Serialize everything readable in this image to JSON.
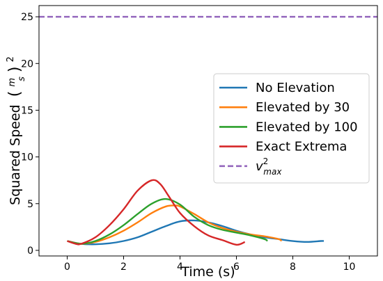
{
  "chart_data": {
    "type": "line",
    "title": "",
    "xlabel": "Time (s)",
    "ylabel": "Squared Speed",
    "ylabel_unit_top": "m",
    "ylabel_unit_bottom": "s",
    "ylabel_unit_power": "2",
    "xlim": [
      -1,
      11
    ],
    "ylim": [
      -0.6,
      26.2
    ],
    "xticks": [
      0,
      2,
      4,
      6,
      8,
      10
    ],
    "yticks": [
      0,
      5,
      10,
      15,
      20,
      25
    ],
    "grid": false,
    "legend_position": "right",
    "vmax_label_base": "v",
    "vmax_label_sup": "2",
    "vmax_label_sub": "max",
    "series": [
      {
        "name": "No Elevation",
        "color": "#1f77b4",
        "style": "solid",
        "x": [
          0,
          0.5,
          1,
          1.5,
          2,
          2.5,
          3,
          3.5,
          4,
          4.5,
          5,
          5.5,
          6,
          6.5,
          7,
          7.5,
          8,
          8.5,
          9,
          9.1
        ],
        "y": [
          1.0,
          0.7,
          0.65,
          0.75,
          1.0,
          1.4,
          2.0,
          2.6,
          3.1,
          3.2,
          3.0,
          2.6,
          2.1,
          1.7,
          1.4,
          1.2,
          1.0,
          0.9,
          1.0,
          1.0
        ]
      },
      {
        "name": "Elevated by 30",
        "color": "#ff7f0e",
        "style": "solid",
        "x": [
          0,
          0.5,
          1,
          1.5,
          2,
          2.5,
          3,
          3.5,
          3.8,
          4,
          4.5,
          5,
          5.5,
          6,
          6.5,
          7,
          7.5,
          7.6
        ],
        "y": [
          1.0,
          0.7,
          0.9,
          1.4,
          2.1,
          3.0,
          4.0,
          4.7,
          4.8,
          4.7,
          3.9,
          3.0,
          2.4,
          2.0,
          1.7,
          1.5,
          1.2,
          1.0
        ]
      },
      {
        "name": "Elevated by 100",
        "color": "#2ca02c",
        "style": "solid",
        "x": [
          0,
          0.5,
          1,
          1.5,
          2,
          2.5,
          3,
          3.5,
          4,
          4.5,
          5,
          5.5,
          6,
          6.5,
          7,
          7.1
        ],
        "y": [
          1.0,
          0.7,
          1.0,
          1.7,
          2.7,
          3.9,
          5.0,
          5.5,
          4.9,
          3.6,
          2.7,
          2.2,
          1.9,
          1.6,
          1.2,
          1.0
        ]
      },
      {
        "name": "Exact Extrema",
        "color": "#d62728",
        "style": "solid",
        "x": [
          0,
          0.3,
          0.5,
          1,
          1.5,
          2,
          2.5,
          3,
          3.3,
          3.6,
          4,
          4.5,
          5,
          5.5,
          6,
          6.3
        ],
        "y": [
          1.0,
          0.7,
          0.7,
          1.4,
          2.7,
          4.4,
          6.4,
          7.5,
          7.1,
          5.8,
          4.0,
          2.6,
          1.6,
          1.1,
          0.6,
          0.9
        ]
      },
      {
        "name": "vmax_squared",
        "color": "#9467bd",
        "style": "dashed",
        "x": [
          -1,
          11
        ],
        "y": [
          25,
          25
        ]
      }
    ]
  }
}
